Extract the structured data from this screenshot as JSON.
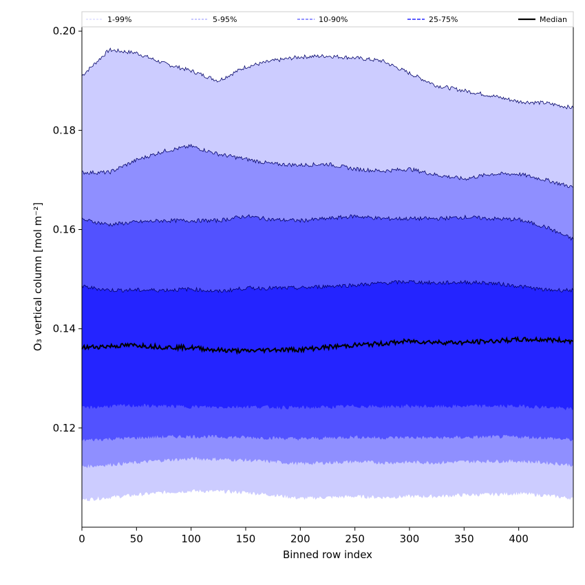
{
  "chart_data": {
    "type": "area",
    "title": "",
    "xlabel": "Binned row index",
    "ylabel": "O₃ vertical column [mol m⁻²]",
    "xlim": [
      0,
      450
    ],
    "ylim": [
      0.1,
      0.201
    ],
    "grid": false,
    "legend_placement": "top",
    "xticks": [
      0,
      50,
      100,
      150,
      200,
      250,
      300,
      350,
      400
    ],
    "yticks": [
      0.12,
      0.14,
      0.16,
      0.18,
      0.2
    ],
    "ytick_labels": [
      "0.12",
      "0.14",
      "0.16",
      "0.18",
      "0.20"
    ],
    "x": [
      0,
      25,
      50,
      75,
      100,
      125,
      150,
      175,
      200,
      225,
      250,
      275,
      300,
      325,
      350,
      375,
      400,
      425,
      450
    ],
    "colors": {
      "band_1_99": "#ccccff",
      "band_5_95": "#8f8fff",
      "band_10_90": "#5252ff",
      "band_25_75": "#2424ff",
      "median": "#000000",
      "band_edge": "#000066"
    },
    "series": [
      {
        "name": "1-99%",
        "lower": [
          0.1055,
          0.106,
          0.1065,
          0.107,
          0.1073,
          0.1072,
          0.107,
          0.1065,
          0.1058,
          0.106,
          0.1062,
          0.106,
          0.1062,
          0.1062,
          0.1065,
          0.1066,
          0.1068,
          0.1064,
          0.1058
        ],
        "upper": [
          0.191,
          0.1962,
          0.1956,
          0.1935,
          0.192,
          0.19,
          0.1928,
          0.194,
          0.1948,
          0.195,
          0.1946,
          0.194,
          0.1915,
          0.189,
          0.188,
          0.187,
          0.1858,
          0.1855,
          0.1845
        ]
      },
      {
        "name": "5-95%",
        "lower": [
          0.1122,
          0.1126,
          0.113,
          0.1135,
          0.1138,
          0.1137,
          0.1135,
          0.1132,
          0.1128,
          0.113,
          0.1132,
          0.113,
          0.1131,
          0.113,
          0.1132,
          0.1133,
          0.1133,
          0.113,
          0.1125
        ],
        "upper": [
          0.1715,
          0.1715,
          0.174,
          0.1758,
          0.1768,
          0.1752,
          0.1742,
          0.1732,
          0.173,
          0.1732,
          0.1722,
          0.1718,
          0.1722,
          0.171,
          0.1702,
          0.1712,
          0.1712,
          0.17,
          0.1685
        ]
      },
      {
        "name": "10-90%",
        "lower": [
          0.1175,
          0.1178,
          0.118,
          0.1182,
          0.1183,
          0.1182,
          0.1181,
          0.118,
          0.1178,
          0.118,
          0.1182,
          0.118,
          0.1181,
          0.118,
          0.1181,
          0.1182,
          0.1182,
          0.118,
          0.1176
        ],
        "upper": [
          0.162,
          0.161,
          0.1615,
          0.1618,
          0.1618,
          0.1618,
          0.1627,
          0.162,
          0.1618,
          0.1622,
          0.1627,
          0.1622,
          0.1622,
          0.1622,
          0.1625,
          0.1622,
          0.162,
          0.1605,
          0.158
        ]
      },
      {
        "name": "25-75%",
        "lower": [
          0.124,
          0.1244,
          0.1245,
          0.1244,
          0.1243,
          0.1242,
          0.1243,
          0.1242,
          0.1241,
          0.1242,
          0.1244,
          0.1243,
          0.1244,
          0.1243,
          0.1244,
          0.1244,
          0.1244,
          0.1242,
          0.1238
        ],
        "upper": [
          0.1485,
          0.1478,
          0.1478,
          0.1478,
          0.148,
          0.1475,
          0.1482,
          0.1482,
          0.1482,
          0.1486,
          0.1488,
          0.1492,
          0.1495,
          0.1492,
          0.1494,
          0.1492,
          0.1486,
          0.1478,
          0.1478
        ]
      },
      {
        "name": "Median",
        "values": [
          0.1362,
          0.1365,
          0.1367,
          0.1363,
          0.1362,
          0.1357,
          0.1355,
          0.1358,
          0.1358,
          0.1363,
          0.1367,
          0.137,
          0.1375,
          0.1373,
          0.1372,
          0.1375,
          0.1378,
          0.1378,
          0.1375
        ]
      }
    ],
    "legend": [
      "1-99%",
      "5-95%",
      "10-90%",
      "25-75%",
      "Median"
    ]
  }
}
